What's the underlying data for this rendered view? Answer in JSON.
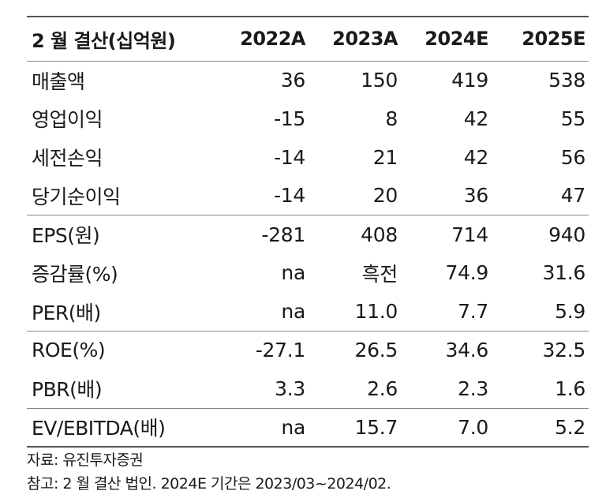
{
  "table": {
    "header": {
      "label": "2 월 결산(십억원)",
      "years": [
        "2022A",
        "2023A",
        "2024E",
        "2025E"
      ]
    },
    "rows": [
      {
        "label": "매출액",
        "values": [
          "36",
          "150",
          "419",
          "538"
        ]
      },
      {
        "label": "영업이익",
        "values": [
          "-15",
          "8",
          "42",
          "55"
        ]
      },
      {
        "label": "세전손익",
        "values": [
          "-14",
          "21",
          "42",
          "56"
        ]
      },
      {
        "label": "당기순이익",
        "values": [
          "-14",
          "20",
          "36",
          "47"
        ]
      },
      {
        "label": "EPS(원)",
        "values": [
          "-281",
          "408",
          "714",
          "940"
        ]
      },
      {
        "label": "증감률(%)",
        "values": [
          "na",
          "흑전",
          "74.9",
          "31.6"
        ]
      },
      {
        "label": "PER(배)",
        "values": [
          "na",
          "11.0",
          "7.7",
          "5.9"
        ]
      },
      {
        "label": "ROE(%)",
        "values": [
          "-27.1",
          "26.5",
          "34.6",
          "32.5"
        ]
      },
      {
        "label": "PBR(배)",
        "values": [
          "3.3",
          "2.6",
          "2.3",
          "1.6"
        ]
      },
      {
        "label": "EV/EBITDA(배)",
        "values": [
          "na",
          "15.7",
          "7.0",
          "5.2"
        ]
      }
    ]
  },
  "notes": {
    "source": "자료: 유진투자증권",
    "reference": "참고: 2 월 결산 법인. 2024E 기간은 2023/03~2024/02."
  }
}
